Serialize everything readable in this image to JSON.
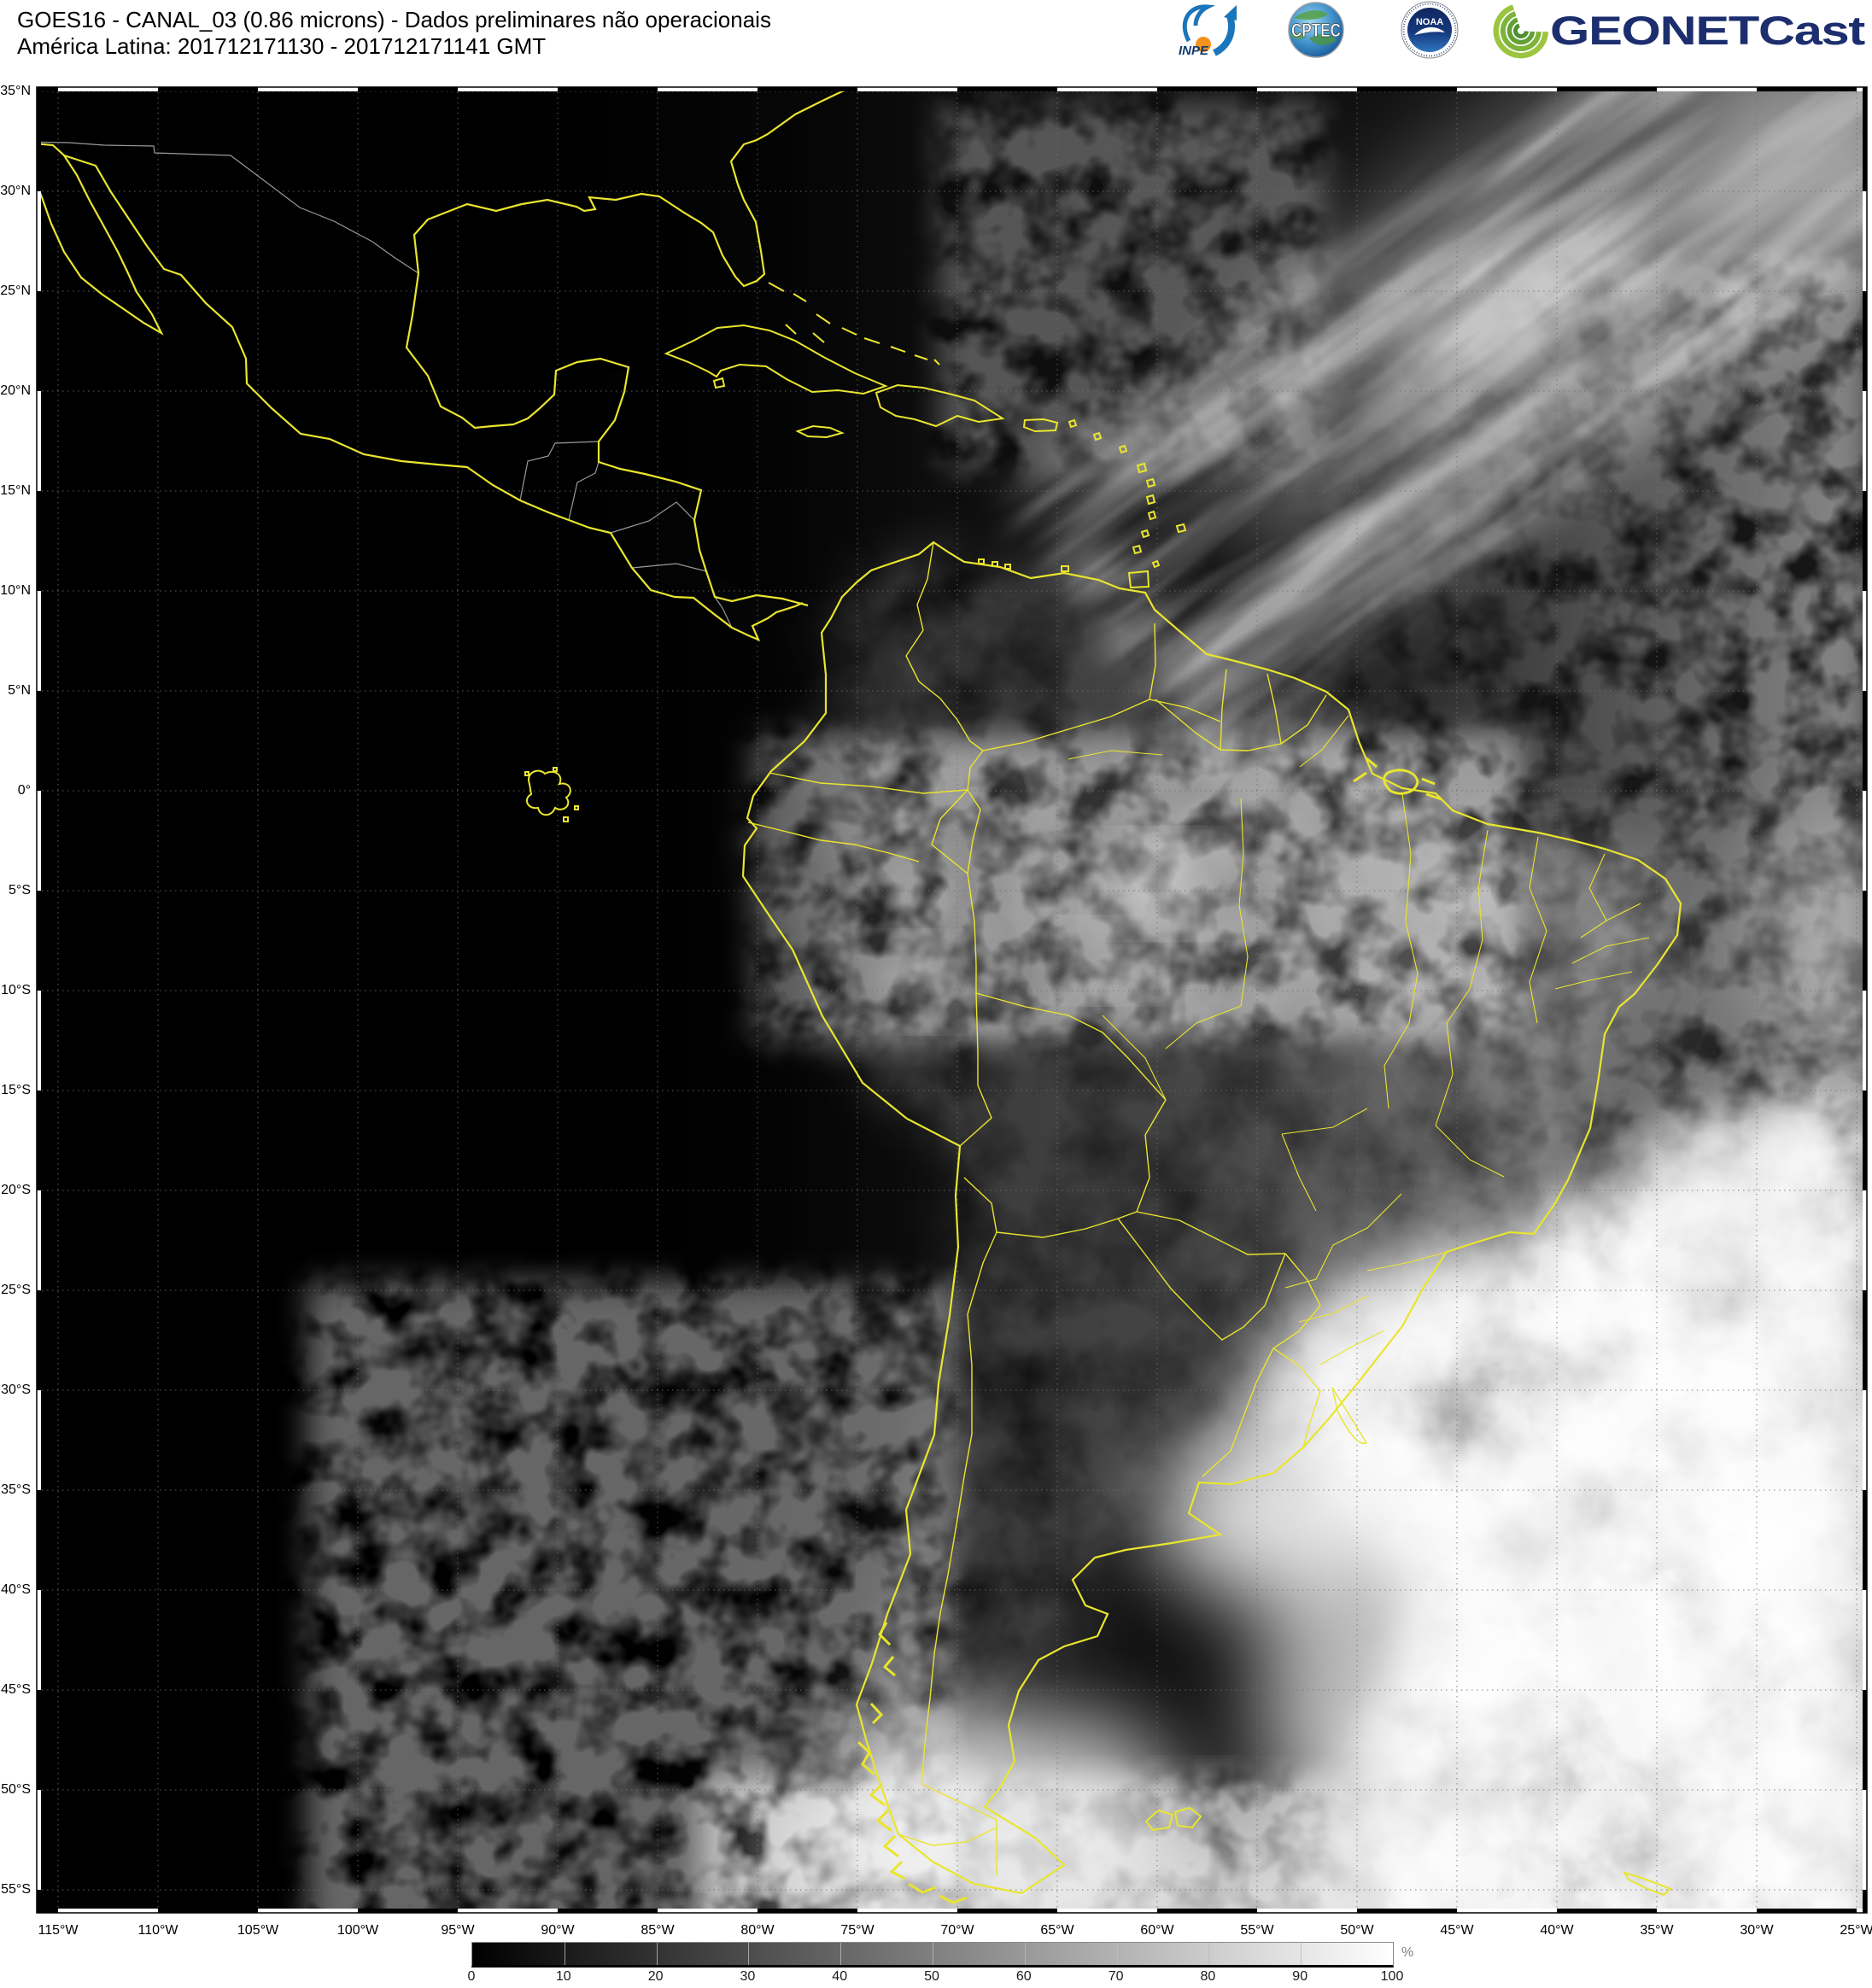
{
  "header": {
    "line1": "GOES16 - CANAL_03 (0.86 microns) - Dados preliminares não operacionais",
    "line2": "América Latina: 201712171130 - 201712171141 GMT"
  },
  "logos": {
    "inpe_label": "INPE",
    "cptec_label": "CPTEC",
    "noaa_label": "NOAA",
    "geonetcast_label": "GEONETCast"
  },
  "axes": {
    "lat_labels": [
      "35°N",
      "30°N",
      "25°N",
      "20°N",
      "15°N",
      "10°N",
      "5°N",
      "0°",
      "5°S",
      "10°S",
      "15°S",
      "20°S",
      "25°S",
      "30°S",
      "35°S",
      "40°S",
      "45°S",
      "50°S",
      "55°S"
    ],
    "lon_labels": [
      "115°W",
      "110°W",
      "105°W",
      "100°W",
      "95°W",
      "90°W",
      "85°W",
      "80°W",
      "75°W",
      "70°W",
      "65°W",
      "60°W",
      "55°W",
      "50°W",
      "45°W",
      "40°W",
      "35°W",
      "30°W",
      "25°W"
    ]
  },
  "colorbar": {
    "ticks": [
      "0",
      "10",
      "20",
      "30",
      "40",
      "50",
      "60",
      "70",
      "80",
      "90",
      "100"
    ],
    "unit": "%",
    "min_color": "#000000",
    "max_color": "#ffffff"
  },
  "colors": {
    "coastline_yellow": "#e9e52e",
    "political_gray": "#9a9a9a",
    "map_background": "#000000",
    "page_background": "#ffffff",
    "header_text": "#000000",
    "geonetcast_navy": "#1d2e6e",
    "shell_green": "#76a832",
    "noaa_navy": "#16387c",
    "noaa_lightblue": "#2f77c0",
    "inpe_blue": "#1b75bb",
    "inpe_orange": "#f6921e"
  }
}
